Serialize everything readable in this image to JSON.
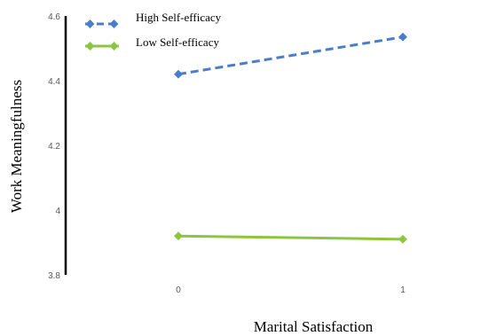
{
  "chart_data": {
    "type": "line",
    "xlabel": "Marital Satisfaction",
    "ylabel": "Work Meaningfulness",
    "x": [
      0,
      1
    ],
    "x_tick_labels": [
      "0",
      "1"
    ],
    "ylim": [
      3.8,
      4.6
    ],
    "y_ticks": [
      3.8,
      4,
      4.2,
      4.4,
      4.6
    ],
    "y_tick_labels": [
      "3.8",
      "4",
      "4.2",
      "4.4",
      "4.6"
    ],
    "grid": false,
    "legend_position": "top-left",
    "series": [
      {
        "name": "High Self-efficacy",
        "values": [
          4.42,
          4.535
        ],
        "color": "#4a7ecb",
        "style": "dashed",
        "marker": "diamond"
      },
      {
        "name": "Low Self-efficacy",
        "values": [
          3.92,
          3.91
        ],
        "color": "#8cc63e",
        "style": "solid",
        "marker": "diamond"
      }
    ]
  }
}
